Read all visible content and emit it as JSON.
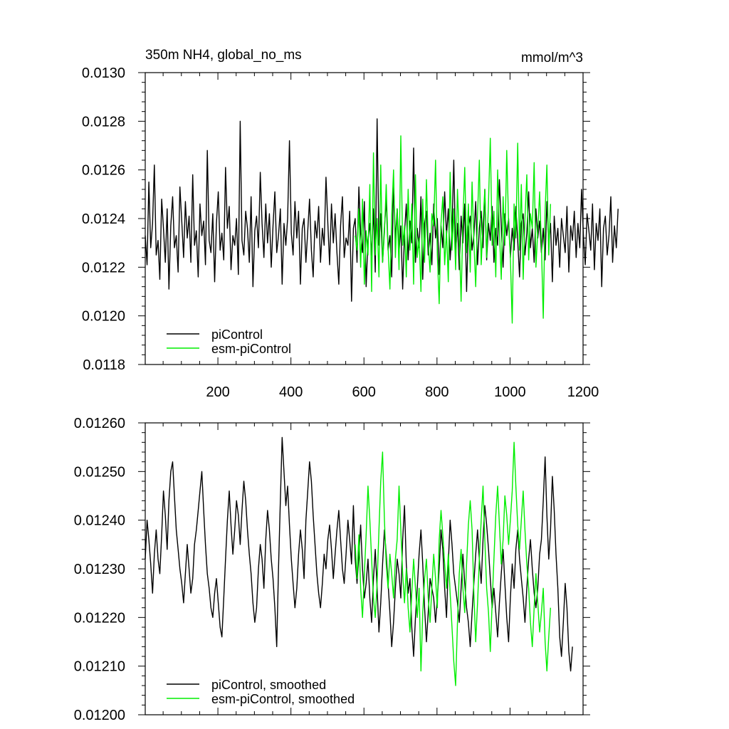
{
  "chart_data": [
    {
      "id": "raw",
      "type": "line",
      "title": "350m NH4, global_no_ms",
      "units": "mmol/m^3",
      "xlim": [
        1,
        1200
      ],
      "ylim": [
        0.0118,
        0.013
      ],
      "x_ticks": [
        200,
        400,
        600,
        800,
        1000,
        1200
      ],
      "x_tick_labels": [
        "200",
        "400",
        "600",
        "800",
        "1000",
        "1200"
      ],
      "y_ticks": [
        0.0118,
        0.012,
        0.0122,
        0.0124,
        0.0126,
        0.0128,
        0.013
      ],
      "y_tick_labels": [
        "0.0118",
        "0.0120",
        "0.0122",
        "0.0124",
        "0.0126",
        "0.0128",
        "0.0130"
      ],
      "grid": false,
      "legend_position": "bottom-left",
      "series": [
        {
          "name": "piControl",
          "color": "#000000",
          "x_start": 1,
          "x_step": 5,
          "values": [
            0.01233,
            0.01221,
            0.01255,
            0.01228,
            0.01238,
            0.01262,
            0.01225,
            0.01231,
            0.01215,
            0.01248,
            0.01236,
            0.01222,
            0.01244,
            0.01211,
            0.01237,
            0.01249,
            0.01228,
            0.01233,
            0.01218,
            0.01253,
            0.01239,
            0.01224,
            0.01247,
            0.01232,
            0.01241,
            0.01222,
            0.01258,
            0.01229,
            0.01235,
            0.01216,
            0.01246,
            0.01233,
            0.01239,
            0.01221,
            0.01268,
            0.01231,
            0.01226,
            0.01242,
            0.01214,
            0.01238,
            0.01251,
            0.01227,
            0.01234,
            0.01223,
            0.01261,
            0.01236,
            0.01245,
            0.01219,
            0.01233,
            0.01229,
            0.0124,
            0.01217,
            0.0128,
            0.01231,
            0.01225,
            0.01243,
            0.01236,
            0.01222,
            0.01249,
            0.01212,
            0.01235,
            0.01241,
            0.01228,
            0.01259,
            0.01238,
            0.01224,
            0.01246,
            0.0123,
            0.01242,
            0.0122,
            0.01237,
            0.01251,
            0.01226,
            0.01233,
            0.01244,
            0.01213,
            0.01238,
            0.01229,
            0.0124,
            0.01272,
            0.01234,
            0.01225,
            0.01247,
            0.01232,
            0.01243,
            0.01213,
            0.01236,
            0.0124,
            0.01222,
            0.01235,
            0.01248,
            0.01227,
            0.01216,
            0.01239,
            0.01232,
            0.01245,
            0.01222,
            0.01236,
            0.01229,
            0.01257,
            0.01238,
            0.01221,
            0.01246,
            0.0123,
            0.01242,
            0.01226,
            0.01213,
            0.01237,
            0.01249,
            0.01224,
            0.01232,
            0.01229,
            0.01243,
            0.01206,
            0.01236,
            0.0124,
            0.01222,
            0.01253,
            0.01234,
            0.01226,
            0.01247,
            0.01212,
            0.01231,
            0.01238,
            0.01225,
            0.01244,
            0.01218,
            0.01281,
            0.01229,
            0.01242,
            0.01222,
            0.01236,
            0.01248,
            0.01227,
            0.01233,
            0.01216,
            0.01255,
            0.01231,
            0.01244,
            0.01226,
            0.01237,
            0.01211,
            0.01234,
            0.01246,
            0.01223,
            0.01239,
            0.0123,
            0.01269,
            0.01222,
            0.01236,
            0.01228,
            0.01249,
            0.01215,
            0.01238,
            0.01243,
            0.01225,
            0.01234,
            0.01221,
            0.01246,
            0.01232,
            0.0124,
            0.01217,
            0.01237,
            0.01228,
            0.01251,
            0.01233,
            0.01244,
            0.01223,
            0.01235,
            0.01264,
            0.01226,
            0.01238,
            0.01219,
            0.01241,
            0.0123,
            0.01246,
            0.0121,
            0.01236,
            0.01241,
            0.01227,
            0.01233,
            0.01247,
            0.01221,
            0.01236,
            0.01243,
            0.01228,
            0.01252,
            0.01223,
            0.01238,
            0.01231,
            0.01245,
            0.01222,
            0.01236,
            0.01229,
            0.01256,
            0.01237,
            0.0122,
            0.01242,
            0.01233,
            0.0124,
            0.01224,
            0.01236,
            0.01227,
            0.01245,
            0.01231,
            0.01216,
            0.01238,
            0.01242,
            0.01225,
            0.01234,
            0.01251,
            0.01228,
            0.01236,
            0.01222,
            0.01244,
            0.01232,
            0.01239,
            0.01226,
            0.01236,
            0.01223,
            0.01247,
            0.0123,
            0.01238,
            0.01214,
            0.01241,
            0.01229,
            0.01236,
            0.0122,
            0.0124,
            0.01233,
            0.01226,
            0.01245,
            0.01218,
            0.01237,
            0.01231,
            0.01243,
            0.01224,
            0.01238,
            0.01228,
            0.01252,
            0.01233,
            0.01221,
            0.01242,
            0.01235,
            0.01227,
            0.01246,
            0.01219,
            0.01238,
            0.01231,
            0.01244,
            0.01212,
            0.01236,
            0.01241,
            0.01225,
            0.01233,
            0.01249,
            0.01222,
            0.01237,
            0.01228,
            0.01244
          ]
        },
        {
          "name": "esm-piControl",
          "color": "#00ee00",
          "x_start": 576,
          "x_step": 5,
          "values": [
            0.01233,
            0.01227,
            0.01244,
            0.0122,
            0.01248,
            0.01213,
            0.01235,
            0.01225,
            0.01254,
            0.0121,
            0.01267,
            0.01225,
            0.0124,
            0.01216,
            0.01262,
            0.01222,
            0.01234,
            0.01254,
            0.01228,
            0.01211,
            0.01241,
            0.0126,
            0.01224,
            0.01244,
            0.01219,
            0.01274,
            0.01229,
            0.01237,
            0.01216,
            0.01252,
            0.01227,
            0.01246,
            0.01213,
            0.01258,
            0.01224,
            0.01232,
            0.0121,
            0.01248,
            0.01222,
            0.01256,
            0.0123,
            0.01218,
            0.01242,
            0.01237,
            0.01264,
            0.01225,
            0.01205,
            0.01238,
            0.01249,
            0.01221,
            0.01235,
            0.01214,
            0.01259,
            0.01227,
            0.01244,
            0.01219,
            0.01252,
            0.01232,
            0.01206,
            0.01239,
            0.01261,
            0.01226,
            0.01246,
            0.01218,
            0.01255,
            0.01231,
            0.01212,
            0.01241,
            0.01264,
            0.01221,
            0.01238,
            0.01252,
            0.01224,
            0.01247,
            0.01273,
            0.01229,
            0.01243,
            0.01216,
            0.0126,
            0.01235,
            0.01215,
            0.01249,
            0.01229,
            0.01268,
            0.01238,
            0.01224,
            0.01197,
            0.01246,
            0.01232,
            0.01271,
            0.01227,
            0.01254,
            0.01215,
            0.0124,
            0.01258,
            0.01223,
            0.01242,
            0.01236,
            0.01263,
            0.0122,
            0.01235,
            0.01251,
            0.01229,
            0.01199,
            0.01243,
            0.01262,
            0.01225,
            0.01246
          ]
        }
      ]
    },
    {
      "id": "smoothed",
      "type": "line",
      "xlim": [
        1,
        1200
      ],
      "ylim": [
        0.012,
        0.0126
      ],
      "y_ticks": [
        0.012,
        0.0121,
        0.0122,
        0.0123,
        0.0124,
        0.0125,
        0.0126
      ],
      "y_tick_labels": [
        "0.01200",
        "0.01210",
        "0.01220",
        "0.01230",
        "0.01240",
        "0.01250",
        "0.01260"
      ],
      "grid": false,
      "legend_position": "bottom-left",
      "series": [
        {
          "name": "piControl, smoothed",
          "color": "#000000",
          "x_start": 1,
          "x_step": 5,
          "values": [
            0.01232,
            0.0124,
            0.01236,
            0.01231,
            0.01225,
            0.01233,
            0.01238,
            0.01232,
            0.01229,
            0.01237,
            0.01246,
            0.01241,
            0.01234,
            0.01244,
            0.0125,
            0.01252,
            0.01245,
            0.01238,
            0.01234,
            0.0123,
            0.01227,
            0.01223,
            0.01229,
            0.01235,
            0.0123,
            0.01225,
            0.01228,
            0.01235,
            0.01238,
            0.01242,
            0.01246,
            0.0125,
            0.01242,
            0.01235,
            0.01229,
            0.01226,
            0.01222,
            0.0122,
            0.01225,
            0.01228,
            0.01223,
            0.01218,
            0.01216,
            0.01224,
            0.01232,
            0.0124,
            0.01246,
            0.01239,
            0.01233,
            0.01238,
            0.01244,
            0.01241,
            0.01235,
            0.01242,
            0.01248,
            0.01244,
            0.01238,
            0.01233,
            0.01229,
            0.01223,
            0.01219,
            0.01222,
            0.0123,
            0.01235,
            0.01232,
            0.01226,
            0.01236,
            0.01242,
            0.01238,
            0.01232,
            0.01228,
            0.01222,
            0.01214,
            0.0123,
            0.01244,
            0.01257,
            0.0125,
            0.01243,
            0.01247,
            0.01239,
            0.01232,
            0.01227,
            0.01222,
            0.01226,
            0.01233,
            0.01238,
            0.01234,
            0.01228,
            0.0124,
            0.01246,
            0.01252,
            0.01248,
            0.01241,
            0.01235,
            0.01229,
            0.01225,
            0.01222,
            0.01227,
            0.01233,
            0.0123,
            0.01236,
            0.01239,
            0.01234,
            0.01228,
            0.01233,
            0.01238,
            0.01242,
            0.01236,
            0.0123,
            0.01227,
            0.01233,
            0.0124,
            0.01236,
            0.01231,
            0.01243,
            0.01232,
            0.01227,
            0.01233,
            0.01239,
            0.0123,
            0.01224,
            0.01227,
            0.01232,
            0.01224,
            0.01219,
            0.01228,
            0.01234,
            0.01226,
            0.01217,
            0.01223,
            0.01231,
            0.01238,
            0.01233,
            0.01227,
            0.01221,
            0.01214,
            0.01219,
            0.01226,
            0.01232,
            0.01229,
            0.01224,
            0.01236,
            0.01243,
            0.01231,
            0.01225,
            0.01228,
            0.01218,
            0.01212,
            0.0122,
            0.01226,
            0.01233,
            0.01238,
            0.01231,
            0.01222,
            0.01215,
            0.01221,
            0.01228,
            0.01226,
            0.01224,
            0.01219,
            0.01224,
            0.0123,
            0.01238,
            0.01234,
            0.01226,
            0.0122,
            0.01231,
            0.0124,
            0.01235,
            0.01229,
            0.01226,
            0.01223,
            0.01219,
            0.01226,
            0.01233,
            0.01227,
            0.01222,
            0.01219,
            0.01214,
            0.01221,
            0.01227,
            0.01233,
            0.01238,
            0.01232,
            0.01227,
            0.01236,
            0.01243,
            0.01239,
            0.01234,
            0.01228,
            0.01222,
            0.01226,
            0.01221,
            0.01216,
            0.01223,
            0.01229,
            0.01234,
            0.01227,
            0.0122,
            0.01215,
            0.01224,
            0.01231,
            0.01226,
            0.01234,
            0.01238,
            0.01232,
            0.01228,
            0.01224,
            0.01219,
            0.01226,
            0.01232,
            0.01236,
            0.0123,
            0.01225,
            0.01222,
            0.01226,
            0.01233,
            0.01236,
            0.01244,
            0.01253,
            0.01241,
            0.01232,
            0.01238,
            0.01249,
            0.01242,
            0.01233,
            0.01226,
            0.01216,
            0.01212,
            0.01219,
            0.01227,
            0.01222,
            0.01213,
            0.01209,
            0.01214
          ]
        },
        {
          "name": "esm-piControl, smoothed",
          "color": "#00ee00",
          "x_start": 576,
          "x_step": 5,
          "values": [
            0.01235,
            0.01228,
            0.01237,
            0.01226,
            0.0122,
            0.01229,
            0.01237,
            0.01247,
            0.0124,
            0.01232,
            0.01224,
            0.0122,
            0.01227,
            0.01238,
            0.01248,
            0.01254,
            0.0124,
            0.01231,
            0.01226,
            0.01233,
            0.01229,
            0.01224,
            0.01232,
            0.01236,
            0.01247,
            0.01238,
            0.01229,
            0.01223,
            0.0123,
            0.01222,
            0.01217,
            0.01225,
            0.01232,
            0.01226,
            0.0122,
            0.01226,
            0.01209,
            0.01221,
            0.01228,
            0.01232,
            0.01224,
            0.01219,
            0.01226,
            0.01233,
            0.01228,
            0.01222,
            0.01236,
            0.01242,
            0.01237,
            0.01231,
            0.01226,
            0.01233,
            0.01225,
            0.01218,
            0.01211,
            0.01206,
            0.01219,
            0.01229,
            0.01234,
            0.01226,
            0.01221,
            0.01231,
            0.01239,
            0.01244,
            0.01238,
            0.01225,
            0.01215,
            0.01223,
            0.01232,
            0.0124,
            0.01247,
            0.01236,
            0.01226,
            0.01221,
            0.01213,
            0.01223,
            0.01232,
            0.01241,
            0.01247,
            0.01239,
            0.01231,
            0.01236,
            0.01245,
            0.01241,
            0.01235,
            0.0124,
            0.01246,
            0.01256,
            0.01247,
            0.01239,
            0.01234,
            0.0124,
            0.01246,
            0.01238,
            0.01231,
            0.01226,
            0.01219,
            0.01214,
            0.01222,
            0.01229,
            0.01223,
            0.01217,
            0.01221,
            0.01226,
            0.01215,
            0.01209,
            0.01216,
            0.01222
          ]
        }
      ]
    }
  ]
}
